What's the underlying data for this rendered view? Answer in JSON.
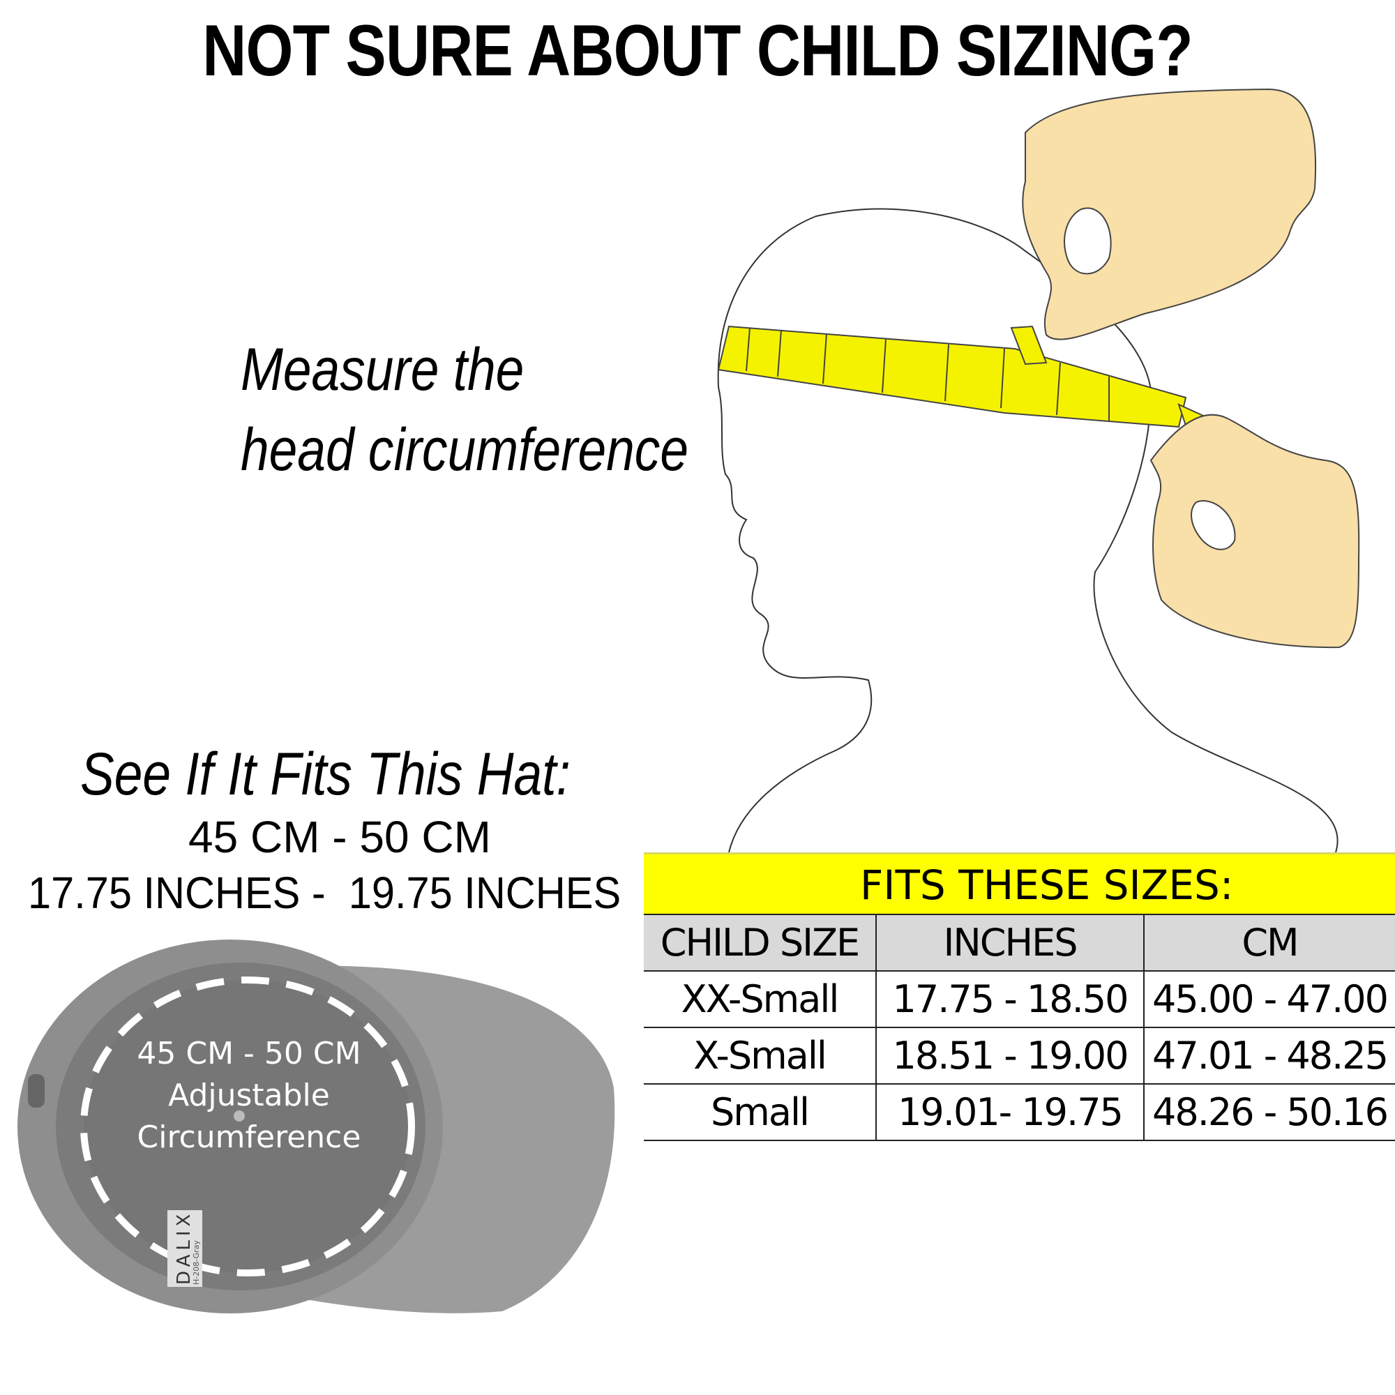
{
  "title": "NOT SURE ABOUT CHILD SIZING?",
  "instruction": {
    "line1": "Measure the",
    "line2": "head circumference"
  },
  "hat_fit": {
    "heading": "See If It Fits This Hat:",
    "cm_range": "45 CM - 50 CM",
    "inch_range": "17.75 INCHES -  19.75 INCHES"
  },
  "hat_image": {
    "line1": "45 CM - 50 CM",
    "line2": "Adjustable",
    "line3": "Circumference",
    "label_brand": "DALIX",
    "label_code": "H-208-Gray"
  },
  "size_table": {
    "banner": "FITS THESE SIZES:",
    "headers": [
      "CHILD SIZE",
      "INCHES",
      "CM"
    ],
    "rows": [
      [
        "XX-Small",
        "17.75 - 18.50",
        "45.00 - 47.00"
      ],
      [
        "X-Small",
        "18.51 - 19.00",
        "47.01 - 48.25"
      ],
      [
        "Small",
        "19.01- 19.75",
        "48.26 - 50.16"
      ]
    ]
  },
  "colors": {
    "banner": "#ffff00",
    "header_row": "#d9d9d9",
    "tape": "#f5f200",
    "hand": "#f9dfa8",
    "hat": "#8a8a8a"
  }
}
